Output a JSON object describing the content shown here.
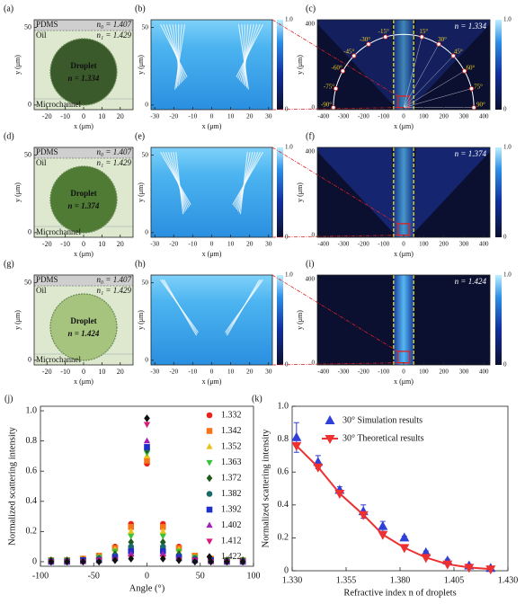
{
  "droplet_panels": {
    "xlim": [
      -27,
      27
    ],
    "ylim": [
      -3,
      55
    ],
    "xticks": [
      -20,
      -10,
      0,
      10,
      20
    ],
    "yticks": [
      0,
      50
    ],
    "xlabel": "x (μm)",
    "ylabel": "y (μm)",
    "outer": "PDMS",
    "n0": "n₀ = 1.407",
    "oil": "Oil",
    "n1": "n₁ = 1.429",
    "droplet": "Droplet",
    "channel": "Microchannel",
    "items": [
      {
        "label": "(a)",
        "n": "n = 1.334",
        "color": "#3b5a2b",
        "text_color": "#ffffff"
      },
      {
        "label": "(d)",
        "n": "n = 1.374",
        "color": "#4f7b34",
        "text_color": "#ffffff"
      },
      {
        "label": "(g)",
        "n": "n = 1.424",
        "color": "#a6c47d",
        "text_color": "#111111"
      }
    ]
  },
  "near_field": {
    "labels": [
      "(b)",
      "(e)",
      "(h)"
    ],
    "xlim": [
      -32,
      32
    ],
    "ylim": [
      -3,
      55
    ],
    "xticks": [
      -30,
      -20,
      -10,
      0,
      10,
      20,
      30
    ],
    "yticks": [
      0,
      50
    ],
    "xlabel": "x (μm)",
    "ylabel": "y (μm)",
    "colorbar_ticks": [
      {
        "value": 1,
        "label": "1.0"
      },
      0
    ]
  },
  "far_field": {
    "items": [
      {
        "label": "(c)",
        "n": "n = 1.334"
      },
      {
        "label": "(f)",
        "n": "n = 1.374"
      },
      {
        "label": "(i)",
        "n": "n = 1.424"
      }
    ],
    "xlim": [
      -430,
      430
    ],
    "ylim": [
      -10,
      420
    ],
    "xticks": [
      -400,
      -300,
      -200,
      -100,
      0,
      100,
      200,
      300,
      400
    ],
    "yticks": [
      0,
      400
    ],
    "xlabel": "x (μm)",
    "ylabel": "y (μm)",
    "angles": [
      {
        "value": -90,
        "label": "-90°"
      },
      {
        "value": -75,
        "label": "-75°"
      },
      {
        "value": -60,
        "label": "-60°"
      },
      {
        "value": -45,
        "label": "-45°"
      },
      {
        "value": -30,
        "label": "-30°"
      },
      {
        "value": -15,
        "label": "-15°"
      },
      {
        "value": 15,
        "label": "15°"
      },
      {
        "value": 30,
        "label": "30°"
      },
      {
        "value": 45,
        "label": "45°"
      },
      {
        "value": 60,
        "label": "60°"
      },
      {
        "value": 75,
        "label": "75°"
      },
      {
        "value": 90,
        "label": "90°"
      }
    ],
    "colorbar_ticks": [
      {
        "value": 1,
        "label": "1.0"
      },
      0
    ]
  },
  "chart_data": [
    {
      "type": "scatter",
      "label": "(j)",
      "xlabel": "Angle (°)",
      "ylabel": "Normalized scattering intensity",
      "x": [
        -90,
        -75,
        -60,
        -45,
        -30,
        -15,
        0,
        15,
        30,
        45,
        60,
        75,
        90
      ],
      "xlim": [
        -100,
        100
      ],
      "xticks": [
        -100,
        -50,
        0,
        50,
        100
      ],
      "ylim": [
        -0.03,
        1.03
      ],
      "yticks": [
        0,
        0.2,
        0.4,
        0.6,
        0.8,
        {
          "value": 1,
          "label": "1.0"
        }
      ],
      "series": [
        {
          "name": "1.332",
          "color": "#e8231c",
          "marker": "circle",
          "values": [
            0.01,
            0.01,
            0.02,
            0.04,
            0.1,
            0.25,
            0.65,
            0.25,
            0.1,
            0.04,
            0.02,
            0.01,
            0.01
          ]
        },
        {
          "name": "1.342",
          "color": "#f5761a",
          "marker": "square",
          "values": [
            0.01,
            0.01,
            0.02,
            0.04,
            0.09,
            0.23,
            0.67,
            0.23,
            0.09,
            0.04,
            0.02,
            0.01,
            0.01
          ]
        },
        {
          "name": "1.352",
          "color": "#e8c21a",
          "marker": "triangle",
          "values": [
            0.01,
            0.01,
            0.01,
            0.03,
            0.08,
            0.2,
            0.7,
            0.2,
            0.08,
            0.03,
            0.01,
            0.01,
            0.01
          ]
        },
        {
          "name": "1.363",
          "color": "#3cc23a",
          "marker": "triangle-down",
          "values": [
            0.01,
            0.01,
            0.01,
            0.03,
            0.07,
            0.17,
            0.72,
            0.17,
            0.07,
            0.03,
            0.01,
            0.01,
            0.01
          ]
        },
        {
          "name": "1.372",
          "color": "#1e5a1e",
          "marker": "diamond",
          "values": [
            0.01,
            0.01,
            0.01,
            0.02,
            0.05,
            0.13,
            0.74,
            0.13,
            0.05,
            0.02,
            0.01,
            0.01,
            0.01
          ]
        },
        {
          "name": "1.382",
          "color": "#1a6a6a",
          "marker": "circle",
          "values": [
            0,
            0,
            0.01,
            0.02,
            0.04,
            0.1,
            0.75,
            0.1,
            0.04,
            0.02,
            0.01,
            0,
            0
          ]
        },
        {
          "name": "1.392",
          "color": "#1f2fc8",
          "marker": "square",
          "values": [
            0,
            0,
            0.01,
            0.01,
            0.03,
            0.07,
            0.76,
            0.07,
            0.03,
            0.01,
            0.01,
            0,
            0
          ]
        },
        {
          "name": "1.402",
          "color": "#a21fb8",
          "marker": "triangle",
          "values": [
            0,
            0,
            0,
            0.01,
            0.02,
            0.05,
            0.8,
            0.05,
            0.02,
            0.01,
            0,
            0,
            0
          ]
        },
        {
          "name": "1.412",
          "color": "#d81b7a",
          "marker": "triangle-down",
          "values": [
            0,
            0,
            0,
            0.01,
            0.01,
            0.03,
            0.91,
            0.03,
            0.01,
            0.01,
            0,
            0,
            0
          ]
        },
        {
          "name": "1.422",
          "color": "#111111",
          "marker": "diamond",
          "values": [
            0,
            0,
            0,
            0,
            0.01,
            0.02,
            0.95,
            0.02,
            0.01,
            0,
            0,
            0,
            0
          ]
        }
      ]
    },
    {
      "type": "line",
      "label": "(k)",
      "xlabel": "Refractive index n of droplets",
      "ylabel": "Normalized scattering intensity",
      "x": [
        1.332,
        1.342,
        1.352,
        1.363,
        1.372,
        1.382,
        1.392,
        1.402,
        1.412,
        1.422
      ],
      "xlim": [
        1.33,
        1.43
      ],
      "xticks": [
        {
          "value": 1.33,
          "label": "1.330"
        },
        {
          "value": 1.355,
          "label": "1.355"
        },
        {
          "value": 1.38,
          "label": "1.380"
        },
        {
          "value": 1.405,
          "label": "1.405"
        },
        {
          "value": 1.43,
          "label": "1.430"
        }
      ],
      "ylim": [
        0,
        1.0
      ],
      "yticks": [
        0,
        0.2,
        0.4,
        0.6,
        0.8,
        {
          "value": 1,
          "label": "1.0"
        }
      ],
      "series": [
        {
          "name": "30°  Simulation results",
          "color": "#2f3fd8",
          "marker": "triangle",
          "draw": "points",
          "values": [
            0.81,
            0.66,
            0.49,
            0.36,
            0.27,
            0.2,
            0.11,
            0.06,
            0.03,
            0.015
          ],
          "errors": [
            0.09,
            0.04,
            0.02,
            0.04,
            0.03,
            0.01,
            0.01,
            0.01,
            0.01,
            0.005
          ]
        },
        {
          "name": "30°  Theoretical results",
          "color": "#ee3030",
          "marker": "triangle-down",
          "draw": "line",
          "values": [
            0.76,
            0.63,
            0.47,
            0.34,
            0.22,
            0.14,
            0.08,
            0.04,
            0.02,
            0.01
          ]
        }
      ]
    }
  ]
}
